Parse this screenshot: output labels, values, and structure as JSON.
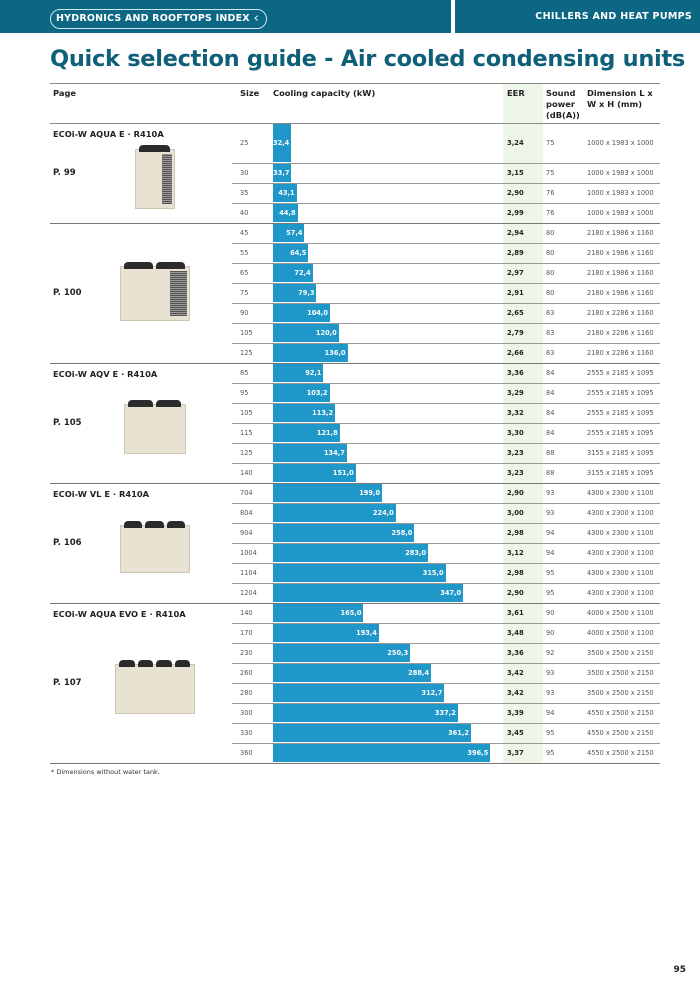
{
  "header": {
    "index_link": "HYDRONICS AND ROOFTOPS INDEX",
    "back_icon": "chevron-left-icon",
    "section": "CHILLERS AND HEAT PUMPS",
    "bar_color": "#0b6784"
  },
  "title": "Quick selection guide - Air cooled condensing units",
  "columns": {
    "page": "Page",
    "size": "Size",
    "capacity": "Cooling capacity (kW)",
    "eer": "EER",
    "sound": "Sound power (dB(A))",
    "dimension": "Dimension L x W x H (mm)"
  },
  "bar_color": "#1f97c9",
  "groups": [
    {
      "title": "ECOi-W AQUA E · R410A",
      "page": "P. 99",
      "rows": [
        {
          "size": "25",
          "capacity": 32.4,
          "capacity_label": "32,4",
          "eer": "3,24",
          "sound": "75",
          "dim": "1000 x 1983 x 1000"
        },
        {
          "size": "30",
          "capacity": 33.7,
          "capacity_label": "33,7",
          "eer": "3,15",
          "sound": "75",
          "dim": "1000 x 1983 x 1000"
        },
        {
          "size": "35",
          "capacity": 43.1,
          "capacity_label": "43,1",
          "eer": "2,90",
          "sound": "76",
          "dim": "1000 x 1983 x 1000"
        },
        {
          "size": "40",
          "capacity": 44.8,
          "capacity_label": "44,8",
          "eer": "2,99",
          "sound": "76",
          "dim": "1000 x 1983 x 1000"
        }
      ]
    },
    {
      "title": "",
      "page": "P. 100",
      "rows": [
        {
          "size": "45",
          "capacity": 57.4,
          "capacity_label": "57,4",
          "eer": "2,94",
          "sound": "80",
          "dim": "2180 x 1986 x 1160"
        },
        {
          "size": "55",
          "capacity": 64.5,
          "capacity_label": "64,5",
          "eer": "2,89",
          "sound": "80",
          "dim": "2180 x 1986 x 1160"
        },
        {
          "size": "65",
          "capacity": 72.4,
          "capacity_label": "72,4",
          "eer": "2,97",
          "sound": "80",
          "dim": "2180 x 1986 x 1160"
        },
        {
          "size": "75",
          "capacity": 79.3,
          "capacity_label": "79,3",
          "eer": "2,91",
          "sound": "80",
          "dim": "2180 x 1986 x 1160"
        },
        {
          "size": "90",
          "capacity": 104.0,
          "capacity_label": "104,0",
          "eer": "2,65",
          "sound": "83",
          "dim": "2180 x 2286 x 1160"
        },
        {
          "size": "105",
          "capacity": 120.0,
          "capacity_label": "120,0",
          "eer": "2,79",
          "sound": "83",
          "dim": "2180 x 2286 x 1160"
        },
        {
          "size": "125",
          "capacity": 136.0,
          "capacity_label": "136,0",
          "eer": "2,66",
          "sound": "83",
          "dim": "2180 x 2286 x 1160"
        }
      ]
    },
    {
      "title": "ECOi-W AQV E · R410A",
      "page": "P. 105",
      "rows": [
        {
          "size": "85",
          "capacity": 92.1,
          "capacity_label": "92,1",
          "eer": "3,36",
          "sound": "84",
          "dim": "2555 x 2185 x 1095"
        },
        {
          "size": "95",
          "capacity": 103.2,
          "capacity_label": "103,2",
          "eer": "3,29",
          "sound": "84",
          "dim": "2555 x 2185 x 1095"
        },
        {
          "size": "105",
          "capacity": 113.2,
          "capacity_label": "113,2",
          "eer": "3,32",
          "sound": "84",
          "dim": "2555 x 2185 x 1095"
        },
        {
          "size": "115",
          "capacity": 121.8,
          "capacity_label": "121,8",
          "eer": "3,30",
          "sound": "84",
          "dim": "2555 x 2185 x 1095"
        },
        {
          "size": "125",
          "capacity": 134.7,
          "capacity_label": "134,7",
          "eer": "3,23",
          "sound": "88",
          "dim": "3155 x 2185 x 1095"
        },
        {
          "size": "140",
          "capacity": 151.0,
          "capacity_label": "151,0",
          "eer": "3,23",
          "sound": "88",
          "dim": "3155 x 2185 x 1095"
        }
      ]
    },
    {
      "title": "ECOi-W VL E · R410A",
      "page": "P. 106",
      "rows": [
        {
          "size": "704",
          "capacity": 199.0,
          "capacity_label": "199,0",
          "eer": "2,90",
          "sound": "93",
          "dim": "4300 x 2300 x 1100"
        },
        {
          "size": "804",
          "capacity": 224.0,
          "capacity_label": "224,0",
          "eer": "3,00",
          "sound": "93",
          "dim": "4300 x 2300 x 1100"
        },
        {
          "size": "904",
          "capacity": 258.0,
          "capacity_label": "258,0",
          "eer": "2,98",
          "sound": "94",
          "dim": "4300 x 2300 x 1100"
        },
        {
          "size": "1004",
          "capacity": 283.0,
          "capacity_label": "283,0",
          "eer": "3,12",
          "sound": "94",
          "dim": "4300 x 2300 x 1100"
        },
        {
          "size": "1104",
          "capacity": 315.0,
          "capacity_label": "315,0",
          "eer": "2,98",
          "sound": "95",
          "dim": "4300 x 2300 x 1100"
        },
        {
          "size": "1204",
          "capacity": 347.0,
          "capacity_label": "347,0",
          "eer": "2,90",
          "sound": "95",
          "dim": "4300 x 2300 x 1100"
        }
      ]
    },
    {
      "title": "ECOi-W AQUA EVO E · R410A",
      "page": "P. 107",
      "rows": [
        {
          "size": "140",
          "capacity": 165.0,
          "capacity_label": "165,0",
          "eer": "3,61",
          "sound": "90",
          "dim": "4000 x 2500 x 1100"
        },
        {
          "size": "170",
          "capacity": 193.4,
          "capacity_label": "193,4",
          "eer": "3,48",
          "sound": "90",
          "dim": "4000 x 2500 x 1100"
        },
        {
          "size": "230",
          "capacity": 250.3,
          "capacity_label": "250,3",
          "eer": "3,36",
          "sound": "92",
          "dim": "3500 x 2500 x 2150"
        },
        {
          "size": "260",
          "capacity": 288.4,
          "capacity_label": "288,4",
          "eer": "3,42",
          "sound": "93",
          "dim": "3500 x 2500 x 2150"
        },
        {
          "size": "280",
          "capacity": 312.7,
          "capacity_label": "312,7",
          "eer": "3,42",
          "sound": "93",
          "dim": "3500 x 2500 x 2150"
        },
        {
          "size": "300",
          "capacity": 337.2,
          "capacity_label": "337,2",
          "eer": "3,39",
          "sound": "94",
          "dim": "4550 x 2500 x 2150"
        },
        {
          "size": "330",
          "capacity": 361.2,
          "capacity_label": "361,2",
          "eer": "3,45",
          "sound": "95",
          "dim": "4550 x 2500 x 2150"
        },
        {
          "size": "360",
          "capacity": 396.5,
          "capacity_label": "396,5",
          "eer": "3,37",
          "sound": "95",
          "dim": "4550 x 2500 x 2150"
        }
      ]
    }
  ],
  "footnote": "* Dimensions without water tank.",
  "page_number": "95"
}
